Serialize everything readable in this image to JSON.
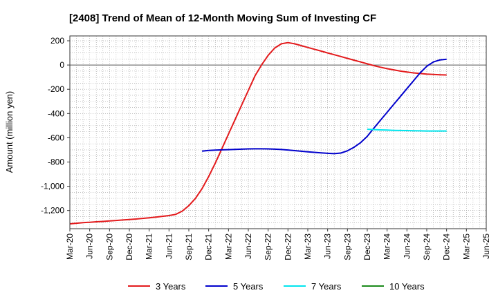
{
  "chart_data": {
    "type": "line",
    "title": "[2408]  Trend of Mean of 12-Month Moving Sum of Investing CF",
    "ylabel": "Amount (million yen)",
    "xlabel": "",
    "ylim": [
      -1350,
      240
    ],
    "grid": true,
    "legend_position": "bottom",
    "x_ticks": [
      "Mar-20",
      "Jun-20",
      "Sep-20",
      "Dec-20",
      "Mar-21",
      "Jun-21",
      "Sep-21",
      "Dec-21",
      "Mar-22",
      "Jun-22",
      "Sep-22",
      "Dec-22",
      "Mar-23",
      "Jun-23",
      "Sep-23",
      "Dec-23",
      "Mar-24",
      "Jun-24",
      "Sep-24",
      "Dec-24",
      "Mar-25",
      "Jun-25"
    ],
    "y_ticks": [
      200,
      0,
      -200,
      -400,
      -600,
      -800,
      -1000,
      -1200
    ],
    "y_tick_labels": [
      "200",
      "0",
      "-200",
      "-400",
      "-600",
      "-800",
      "-1,000",
      "-1,200"
    ],
    "series": [
      {
        "name": "3 Years",
        "color": "#e31a1c",
        "points": [
          [
            "Mar-20",
            -1310
          ],
          [
            "Apr-20",
            -1305
          ],
          [
            "May-20",
            -1300
          ],
          [
            "Jun-20",
            -1297
          ],
          [
            "Jul-20",
            -1293
          ],
          [
            "Aug-20",
            -1290
          ],
          [
            "Sep-20",
            -1286
          ],
          [
            "Oct-20",
            -1282
          ],
          [
            "Nov-20",
            -1278
          ],
          [
            "Dec-20",
            -1274
          ],
          [
            "Jan-21",
            -1270
          ],
          [
            "Feb-21",
            -1265
          ],
          [
            "Mar-21",
            -1260
          ],
          [
            "Apr-21",
            -1254
          ],
          [
            "May-21",
            -1248
          ],
          [
            "Jun-21",
            -1242
          ],
          [
            "Jul-21",
            -1232
          ],
          [
            "Aug-21",
            -1205
          ],
          [
            "Sep-21",
            -1160
          ],
          [
            "Oct-21",
            -1100
          ],
          [
            "Nov-21",
            -1020
          ],
          [
            "Dec-21",
            -920
          ],
          [
            "Jan-22",
            -810
          ],
          [
            "Feb-22",
            -690
          ],
          [
            "Mar-22",
            -570
          ],
          [
            "Apr-22",
            -450
          ],
          [
            "May-22",
            -330
          ],
          [
            "Jun-22",
            -210
          ],
          [
            "Jul-22",
            -90
          ],
          [
            "Aug-22",
            0
          ],
          [
            "Sep-22",
            80
          ],
          [
            "Oct-22",
            140
          ],
          [
            "Nov-22",
            175
          ],
          [
            "Dec-22",
            185
          ],
          [
            "Jan-23",
            175
          ],
          [
            "Feb-23",
            160
          ],
          [
            "Mar-23",
            145
          ],
          [
            "Apr-23",
            130
          ],
          [
            "May-23",
            115
          ],
          [
            "Jun-23",
            100
          ],
          [
            "Jul-23",
            85
          ],
          [
            "Aug-23",
            70
          ],
          [
            "Sep-23",
            55
          ],
          [
            "Oct-23",
            40
          ],
          [
            "Nov-23",
            25
          ],
          [
            "Dec-23",
            10
          ],
          [
            "Jan-24",
            -5
          ],
          [
            "Feb-24",
            -18
          ],
          [
            "Mar-24",
            -30
          ],
          [
            "Apr-24",
            -40
          ],
          [
            "May-24",
            -50
          ],
          [
            "Jun-24",
            -58
          ],
          [
            "Jul-24",
            -65
          ],
          [
            "Aug-24",
            -70
          ],
          [
            "Sep-24",
            -75
          ],
          [
            "Oct-24",
            -78
          ],
          [
            "Nov-24",
            -80
          ],
          [
            "Dec-24",
            -82
          ]
        ]
      },
      {
        "name": "5 Years",
        "color": "#0000cc",
        "points": [
          [
            "Nov-21",
            -710
          ],
          [
            "Dec-21",
            -705
          ],
          [
            "Jan-22",
            -702
          ],
          [
            "Feb-22",
            -700
          ],
          [
            "Mar-22",
            -698
          ],
          [
            "Apr-22",
            -696
          ],
          [
            "May-22",
            -694
          ],
          [
            "Jun-22",
            -692
          ],
          [
            "Jul-22",
            -691
          ],
          [
            "Aug-22",
            -691
          ],
          [
            "Sep-22",
            -692
          ],
          [
            "Oct-22",
            -694
          ],
          [
            "Nov-22",
            -697
          ],
          [
            "Dec-22",
            -701
          ],
          [
            "Jan-23",
            -706
          ],
          [
            "Feb-23",
            -711
          ],
          [
            "Mar-23",
            -716
          ],
          [
            "Apr-23",
            -720
          ],
          [
            "May-23",
            -724
          ],
          [
            "Jun-23",
            -728
          ],
          [
            "Jul-23",
            -731
          ],
          [
            "Aug-23",
            -726
          ],
          [
            "Sep-23",
            -708
          ],
          [
            "Oct-23",
            -678
          ],
          [
            "Nov-23",
            -640
          ],
          [
            "Dec-23",
            -588
          ],
          [
            "Jan-24",
            -520
          ],
          [
            "Feb-24",
            -455
          ],
          [
            "Mar-24",
            -390
          ],
          [
            "Apr-24",
            -325
          ],
          [
            "May-24",
            -260
          ],
          [
            "Jun-24",
            -195
          ],
          [
            "Jul-24",
            -130
          ],
          [
            "Aug-24",
            -65
          ],
          [
            "Sep-24",
            -10
          ],
          [
            "Oct-24",
            25
          ],
          [
            "Nov-24",
            42
          ],
          [
            "Dec-24",
            48
          ]
        ]
      },
      {
        "name": "7 Years",
        "color": "#00e5ee",
        "points": [
          [
            "Dec-23",
            -530
          ],
          [
            "Jan-24",
            -533
          ],
          [
            "Feb-24",
            -535
          ],
          [
            "Mar-24",
            -537
          ],
          [
            "Apr-24",
            -539
          ],
          [
            "May-24",
            -540
          ],
          [
            "Jun-24",
            -541
          ],
          [
            "Jul-24",
            -542
          ],
          [
            "Aug-24",
            -543
          ],
          [
            "Sep-24",
            -544
          ],
          [
            "Oct-24",
            -544
          ],
          [
            "Nov-24",
            -544
          ],
          [
            "Dec-24",
            -544
          ]
        ]
      },
      {
        "name": "10 Years",
        "color": "#1a8a1a",
        "points": []
      }
    ]
  }
}
